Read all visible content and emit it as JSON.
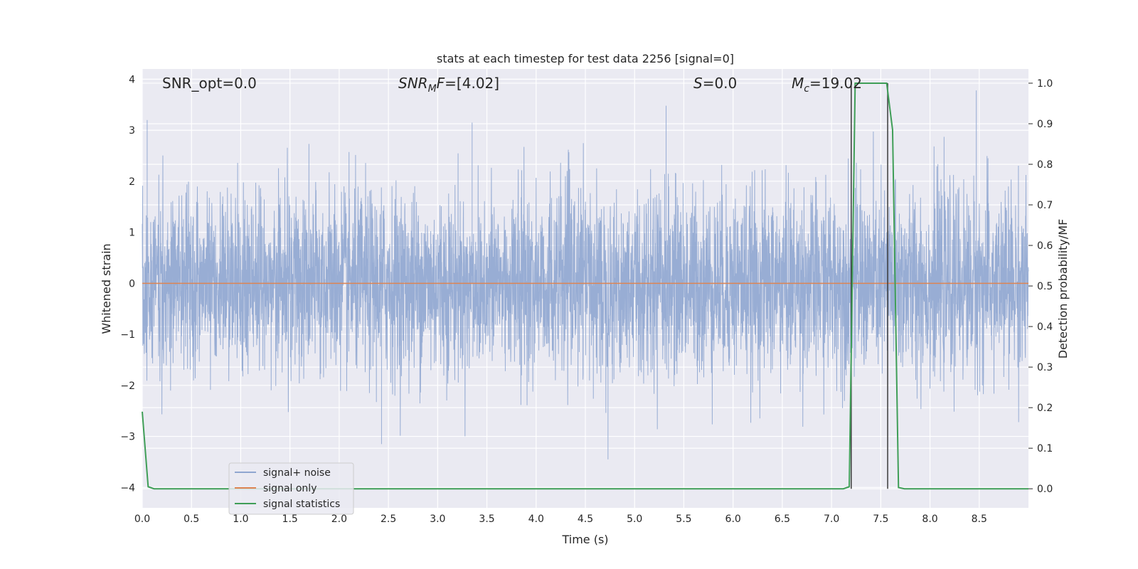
{
  "chart_data": {
    "type": "line",
    "title": "stats at each timestep for test data 2256 [signal=0]",
    "xlabel": "Time (s)",
    "ylabel_left": "Whitened strain",
    "ylabel_right": "Detection probability/MF",
    "xlim": [
      0.0,
      9.0
    ],
    "ylim_left": [
      -4.4,
      4.2
    ],
    "ylim_right": [
      -0.047,
      1.035
    ],
    "x_ticks": [
      "0.0",
      "0.5",
      "1.0",
      "1.5",
      "2.0",
      "2.5",
      "3.0",
      "3.5",
      "4.0",
      "4.5",
      "5.0",
      "5.5",
      "6.0",
      "6.5",
      "7.0",
      "7.5",
      "8.0",
      "8.5"
    ],
    "y_left_ticks": [
      "−4",
      "−3",
      "−2",
      "−1",
      "0",
      "1",
      "2",
      "3",
      "4"
    ],
    "y_right_ticks": [
      "0.0",
      "0.1",
      "0.2",
      "0.3",
      "0.4",
      "0.5",
      "0.6",
      "0.7",
      "0.8",
      "0.9",
      "1.0"
    ],
    "grid": true,
    "legend_position": "lower-left",
    "annotations": [
      {
        "base": "SNR_opt=0.0",
        "sub": "",
        "rest": ""
      },
      {
        "base": "SNR",
        "sub": "M",
        "rest": "F=[4.02]"
      },
      {
        "base": "S",
        "sub": "",
        "rest": "=0.0"
      },
      {
        "base": "M",
        "sub": "c",
        "rest": "=19.02"
      }
    ],
    "series": [
      {
        "name": "signal+ noise",
        "color": "#8fa6d0",
        "axis": "left",
        "description": "whitened strain noise, approx amplitude range -3.4 to 3.8",
        "noise_std": 0.9,
        "extreme_points": [
          [
            0.05,
            3.2
          ],
          [
            4.73,
            -3.45
          ],
          [
            5.32,
            3.48
          ],
          [
            8.47,
            3.78
          ],
          [
            2.43,
            -3.15
          ],
          [
            3.35,
            3.15
          ]
        ]
      },
      {
        "name": "signal only",
        "color": "#dd8452",
        "axis": "left",
        "x": [
          0.0,
          9.0
        ],
        "y": [
          0.0,
          0.0
        ]
      },
      {
        "name": "signal statistics",
        "color": "#3f9e57",
        "axis": "right",
        "x": [
          0.0,
          0.06,
          0.12,
          7.12,
          7.18,
          7.24,
          7.56,
          7.62,
          7.68,
          7.74,
          9.0
        ],
        "y": [
          0.19,
          0.005,
          0.0,
          0.0,
          0.005,
          1.0,
          1.0,
          0.885,
          0.003,
          0.0,
          0.0
        ]
      }
    ],
    "vlines": [
      {
        "x": 7.2,
        "ymin": 0.0,
        "ymax": 1.0,
        "color": "#3a3a3a",
        "axis": "right"
      },
      {
        "x": 7.57,
        "ymin": 0.0,
        "ymax": 1.0,
        "color": "#3a3a3a",
        "axis": "right"
      }
    ]
  }
}
